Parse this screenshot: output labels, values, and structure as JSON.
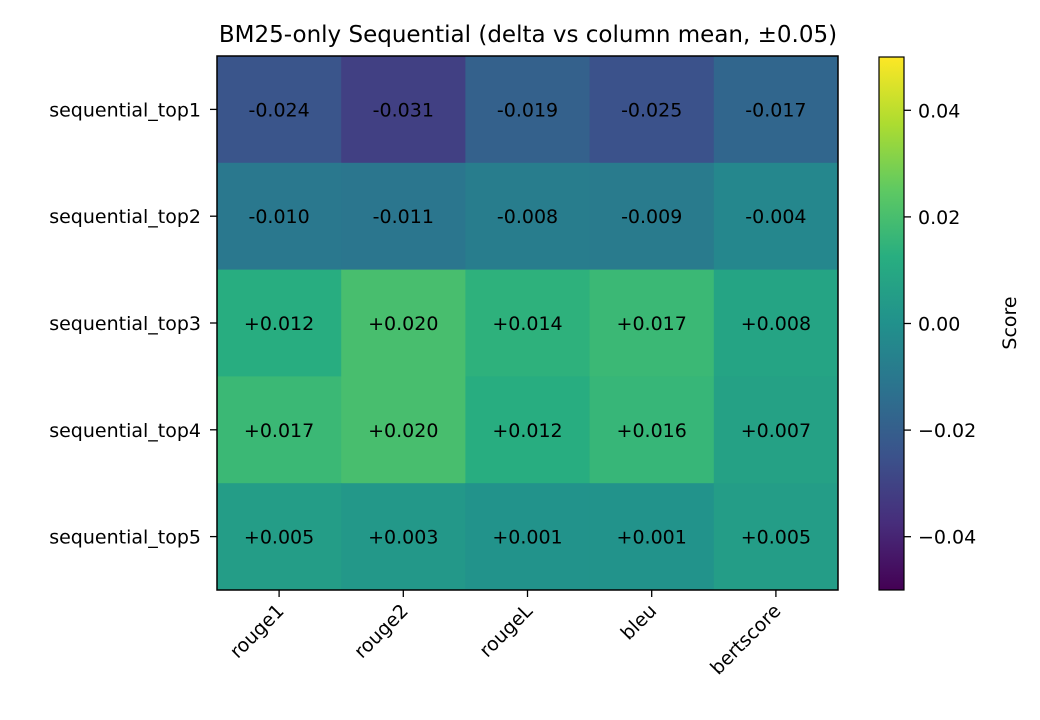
{
  "chart_data": {
    "type": "heatmap",
    "title": "BM25-only Sequential (delta vs column mean, ±0.05)",
    "xlabel": "",
    "ylabel": "",
    "columns": [
      "rouge1",
      "rouge2",
      "rougeL",
      "bleu",
      "bertscore"
    ],
    "rows": [
      "sequential_top1",
      "sequential_top2",
      "sequential_top3",
      "sequential_top4",
      "sequential_top5"
    ],
    "values": [
      [
        -0.024,
        -0.031,
        -0.019,
        -0.025,
        -0.017
      ],
      [
        -0.01,
        -0.011,
        -0.008,
        -0.009,
        -0.004
      ],
      [
        0.012,
        0.02,
        0.014,
        0.017,
        0.008
      ],
      [
        0.017,
        0.02,
        0.012,
        0.016,
        0.007
      ],
      [
        0.005,
        0.003,
        0.001,
        0.001,
        0.005
      ]
    ],
    "cell_labels": [
      [
        "-0.024",
        "-0.031",
        "-0.019",
        "-0.025",
        "-0.017"
      ],
      [
        "-0.010",
        "-0.011",
        "-0.008",
        "-0.009",
        "-0.004"
      ],
      [
        "+0.012",
        "+0.020",
        "+0.014",
        "+0.017",
        "+0.008"
      ],
      [
        "+0.017",
        "+0.020",
        "+0.012",
        "+0.016",
        "+0.007"
      ],
      [
        "+0.005",
        "+0.003",
        "+0.001",
        "+0.001",
        "+0.005"
      ]
    ],
    "colorbar": {
      "label": "Score",
      "vmin": -0.05,
      "vmax": 0.05,
      "colormap": "viridis",
      "ticks": [
        0.04,
        0.02,
        0.0,
        -0.02,
        -0.04
      ],
      "tick_labels": [
        "0.04",
        "0.02",
        "0.00",
        "−0.02",
        "−0.04"
      ]
    }
  }
}
